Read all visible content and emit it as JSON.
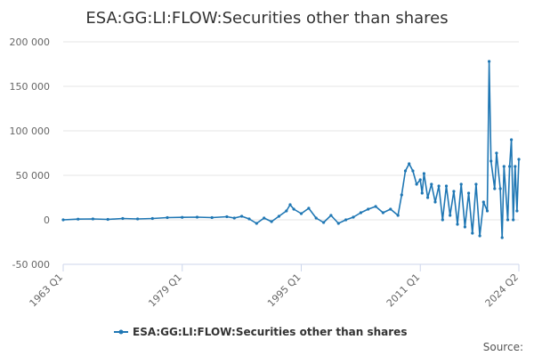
{
  "chart_data": {
    "type": "line",
    "title": "ESA:GG:LI:FLOW:Securities other than shares",
    "xlabel": "",
    "ylabel": "",
    "x_tick_labels": [
      "1963 Q1",
      "1979 Q1",
      "1995 Q1",
      "2011 Q1",
      "2024 Q2"
    ],
    "y_tick_labels": [
      "-50 000",
      "0",
      "50 000",
      "100 000",
      "150 000",
      "200 000"
    ],
    "y_ticks": [
      -50000,
      0,
      50000,
      100000,
      150000,
      200000
    ],
    "ylim": [
      -50000,
      200000
    ],
    "xlim": [
      "1963 Q1",
      "2024 Q2"
    ],
    "grid": "horizontal",
    "legend_position": "bottom-center",
    "series": [
      {
        "name": "ESA:GG:LI:FLOW:Securities other than shares",
        "color": "#1f77b4",
        "points": [
          [
            "1963 Q1",
            0
          ],
          [
            "1965 Q1",
            800
          ],
          [
            "1967 Q1",
            1000
          ],
          [
            "1969 Q1",
            500
          ],
          [
            "1971 Q1",
            1500
          ],
          [
            "1973 Q1",
            1000
          ],
          [
            "1975 Q1",
            1500
          ],
          [
            "1977 Q1",
            2500
          ],
          [
            "1979 Q1",
            2800
          ],
          [
            "1981 Q1",
            3000
          ],
          [
            "1983 Q1",
            2500
          ],
          [
            "1985 Q1",
            3500
          ],
          [
            "1986 Q1",
            2000
          ],
          [
            "1987 Q1",
            4000
          ],
          [
            "1988 Q1",
            1000
          ],
          [
            "1989 Q1",
            -4000
          ],
          [
            "1990 Q1",
            2000
          ],
          [
            "1991 Q1",
            -2000
          ],
          [
            "1992 Q1",
            4000
          ],
          [
            "1993 Q1",
            10000
          ],
          [
            "1993 Q3",
            17000
          ],
          [
            "1994 Q1",
            12000
          ],
          [
            "1995 Q1",
            7000
          ],
          [
            "1996 Q1",
            13000
          ],
          [
            "1997 Q1",
            2000
          ],
          [
            "1998 Q1",
            -3000
          ],
          [
            "1999 Q1",
            5000
          ],
          [
            "2000 Q1",
            -4000
          ],
          [
            "2001 Q1",
            0
          ],
          [
            "2002 Q1",
            3000
          ],
          [
            "2003 Q1",
            8000
          ],
          [
            "2004 Q1",
            12000
          ],
          [
            "2005 Q1",
            15000
          ],
          [
            "2006 Q1",
            8000
          ],
          [
            "2007 Q1",
            12000
          ],
          [
            "2008 Q1",
            5000
          ],
          [
            "2008 Q3",
            28000
          ],
          [
            "2009 Q1",
            55000
          ],
          [
            "2009 Q3",
            63000
          ],
          [
            "2010 Q1",
            55000
          ],
          [
            "2010 Q3",
            40000
          ],
          [
            "2011 Q1",
            45000
          ],
          [
            "2011 Q2",
            30000
          ],
          [
            "2011 Q3",
            52000
          ],
          [
            "2012 Q1",
            25000
          ],
          [
            "2012 Q3",
            40000
          ],
          [
            "2013 Q1",
            20000
          ],
          [
            "2013 Q3",
            38000
          ],
          [
            "2014 Q1",
            0
          ],
          [
            "2014 Q3",
            38000
          ],
          [
            "2015 Q1",
            5000
          ],
          [
            "2015 Q3",
            32000
          ],
          [
            "2016 Q1",
            -5000
          ],
          [
            "2016 Q3",
            40000
          ],
          [
            "2017 Q1",
            -8000
          ],
          [
            "2017 Q3",
            30000
          ],
          [
            "2018 Q1",
            -15000
          ],
          [
            "2018 Q3",
            40000
          ],
          [
            "2019 Q1",
            -18000
          ],
          [
            "2019 Q3",
            20000
          ],
          [
            "2020 Q1",
            10000
          ],
          [
            "2020 Q2",
            178000
          ],
          [
            "2020 Q3",
            66000
          ],
          [
            "2021 Q1",
            35000
          ],
          [
            "2021 Q2",
            75000
          ],
          [
            "2021 Q4",
            35000
          ],
          [
            "2022 Q1",
            -20000
          ],
          [
            "2022 Q2",
            60000
          ],
          [
            "2022 Q4",
            0
          ],
          [
            "2023 Q1",
            60000
          ],
          [
            "2023 Q2",
            90000
          ],
          [
            "2023 Q3",
            0
          ],
          [
            "2023 Q4",
            60000
          ],
          [
            "2024 Q1",
            10000
          ],
          [
            "2024 Q2",
            68000
          ]
        ]
      }
    ],
    "source_text": "Source:"
  }
}
